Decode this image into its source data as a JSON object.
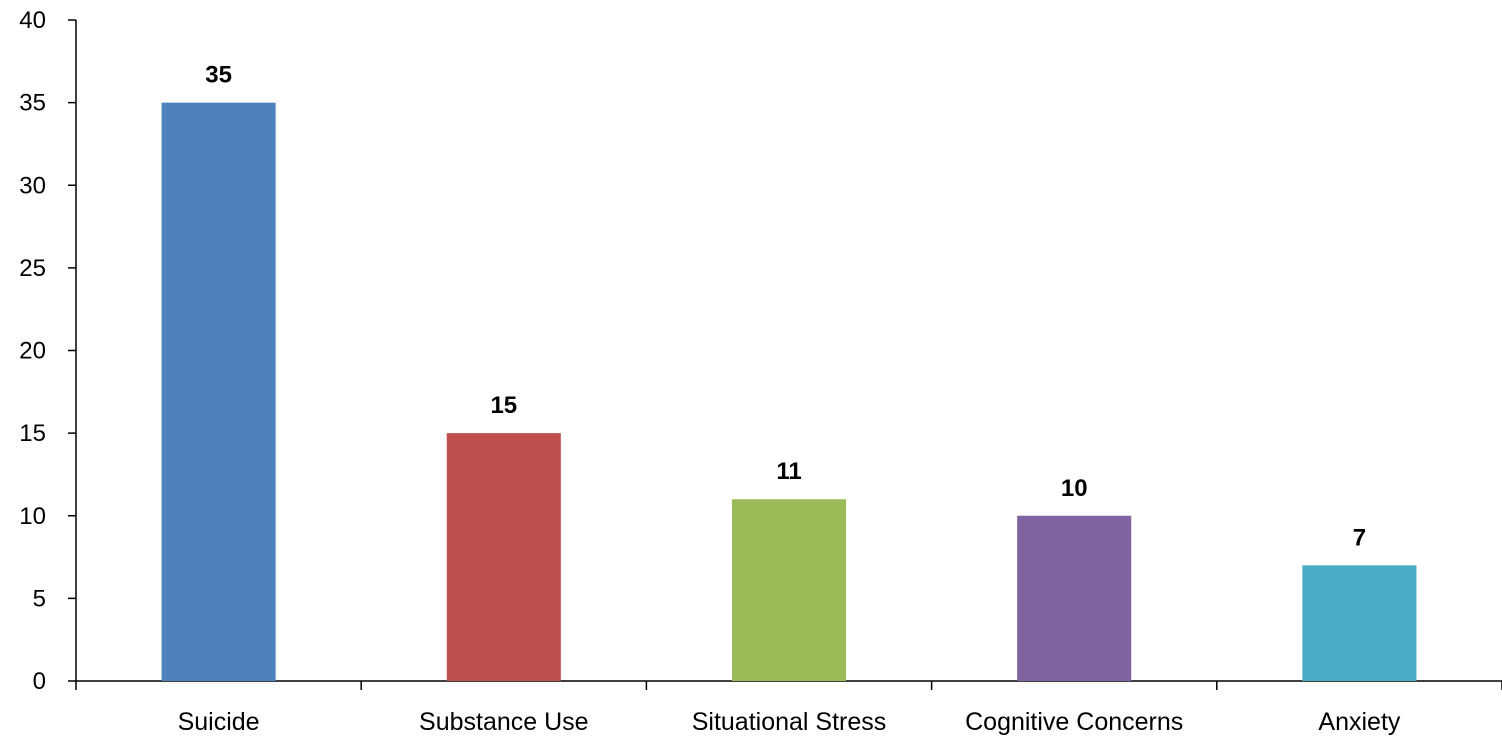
{
  "chart_data": {
    "type": "bar",
    "categories": [
      "Suicide",
      "Substance Use",
      "Situational Stress",
      "Cognitive Concerns",
      "Anxiety"
    ],
    "values": [
      35,
      15,
      11,
      10,
      7
    ],
    "data_labels": [
      "35",
      "15",
      "11",
      "10",
      "7"
    ],
    "colors": [
      "#4F81BD",
      "#C0504D",
      "#9BBB59",
      "#8064A2",
      "#4BACC6"
    ],
    "title": "",
    "xlabel": "",
    "ylabel": "",
    "ylim": [
      0,
      40
    ],
    "yticks": [
      0,
      5,
      10,
      15,
      20,
      25,
      30,
      35,
      40
    ],
    "grid": false,
    "legend": "none"
  }
}
